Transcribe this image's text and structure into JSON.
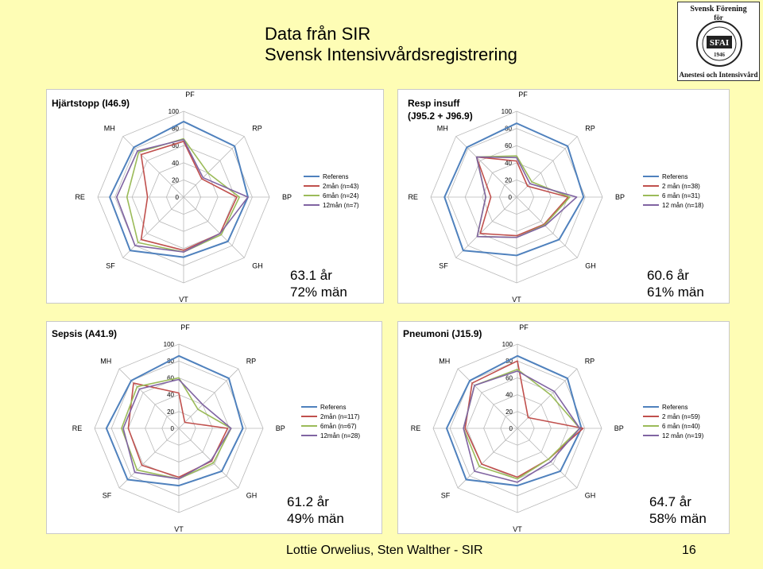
{
  "title": {
    "line1": "Data från SIR",
    "line2": "Svensk Intensivvårdsregistrering"
  },
  "logo": {
    "top": "Svensk Förening",
    "mid": "för",
    "bottom": "Anestesi och Intensivvård",
    "seal": "SFAI",
    "year": "1946"
  },
  "footer": {
    "text": "Lottie Orwelius, Sten Walther - SIR",
    "page": "16"
  },
  "colors": {
    "referens": "#4f81bd",
    "t2": "#c0504d",
    "t6": "#9bbb59",
    "t12": "#8064a2"
  },
  "chart_data": [
    {
      "type": "radar",
      "title": "Hjärtstopp (I46.9)",
      "axes": [
        "PF",
        "RP",
        "BP",
        "GH",
        "VT",
        "SF",
        "RE",
        "MH"
      ],
      "ticks": [
        "0",
        "20",
        "40",
        "60",
        "80",
        "100"
      ],
      "rlim": [
        0,
        100
      ],
      "series": [
        {
          "name": "Referens",
          "values": [
            88,
            84,
            75,
            73,
            70,
            88,
            86,
            82
          ]
        },
        {
          "name": "2mån (n=43)",
          "values": [
            65,
            30,
            62,
            60,
            62,
            70,
            42,
            70
          ]
        },
        {
          "name": "6mån (n=24)",
          "values": [
            68,
            40,
            65,
            62,
            64,
            75,
            66,
            74
          ]
        },
        {
          "name": "12mån (n=7)",
          "values": [
            67,
            32,
            75,
            60,
            64,
            80,
            78,
            76
          ]
        }
      ],
      "stat": {
        "age": "63.1 år",
        "men": "72% män"
      }
    },
    {
      "type": "radar",
      "title": "Resp insuff (J95.2 + J96.9)",
      "axes": [
        "PF",
        "RP",
        "BP",
        "GH",
        "VT",
        "SF",
        "RE",
        "MH"
      ],
      "ticks": [
        "0",
        "20",
        "40",
        "60",
        "80",
        "100"
      ],
      "rlim": [
        0,
        100
      ],
      "series": [
        {
          "name": "Referens",
          "values": [
            86,
            84,
            78,
            70,
            68,
            88,
            84,
            82
          ]
        },
        {
          "name": "2 mån (n=38)",
          "values": [
            42,
            18,
            60,
            45,
            45,
            60,
            30,
            66
          ]
        },
        {
          "name": "6 mån (n=31)",
          "values": [
            48,
            25,
            62,
            46,
            47,
            65,
            36,
            66
          ]
        },
        {
          "name": "12 mån (n=18)",
          "values": [
            46,
            22,
            70,
            47,
            47,
            65,
            36,
            66
          ]
        }
      ],
      "stat": {
        "age": "60.6 år",
        "men": "61% män"
      }
    },
    {
      "type": "radar",
      "title": "Sepsis (A41.9)",
      "axes": [
        "PF",
        "RP",
        "BP",
        "GH",
        "VT",
        "SF",
        "RE",
        "MH"
      ],
      "ticks": [
        "0",
        "20",
        "40",
        "60",
        "80",
        "100"
      ],
      "rlim": [
        0,
        100
      ],
      "series": [
        {
          "name": "Referens",
          "values": [
            86,
            84,
            76,
            72,
            68,
            86,
            86,
            80
          ]
        },
        {
          "name": "2mån (n=117)",
          "values": [
            42,
            10,
            58,
            55,
            58,
            62,
            60,
            76
          ]
        },
        {
          "name": "6mån (n=67)",
          "values": [
            60,
            32,
            62,
            58,
            60,
            70,
            68,
            70
          ]
        },
        {
          "name": "12mån (n=28)",
          "values": [
            58,
            40,
            62,
            54,
            60,
            74,
            66,
            66
          ]
        }
      ],
      "stat": {
        "age": "61.2 år",
        "men": "49% män"
      }
    },
    {
      "type": "radar",
      "title": "Pneumoni (J15.9)",
      "axes": [
        "PF",
        "RP",
        "BP",
        "GH",
        "VT",
        "SF",
        "RE",
        "MH"
      ],
      "ticks": [
        "0",
        "20",
        "40",
        "60",
        "80",
        "100"
      ],
      "rlim": [
        0,
        100
      ],
      "series": [
        {
          "name": "Referens",
          "values": [
            86,
            84,
            76,
            72,
            68,
            86,
            84,
            80
          ]
        },
        {
          "name": "2 mån (n=59)",
          "values": [
            80,
            18,
            78,
            52,
            58,
            60,
            62,
            76
          ]
        },
        {
          "name": "6 mån (n=40)",
          "values": [
            70,
            56,
            74,
            52,
            60,
            64,
            64,
            72
          ]
        },
        {
          "name": "12 mån (n=19)",
          "values": [
            68,
            62,
            74,
            56,
            64,
            72,
            64,
            72
          ]
        }
      ],
      "stat": {
        "age": "64.7 år",
        "men": "58% män"
      }
    }
  ]
}
